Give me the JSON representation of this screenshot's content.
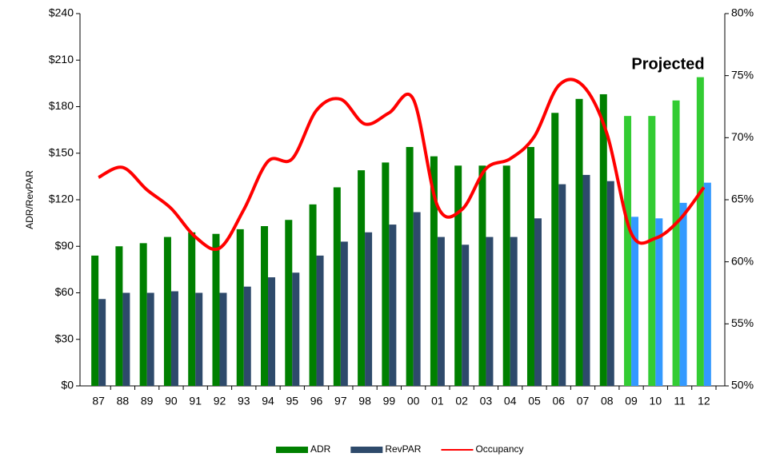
{
  "chart_data": {
    "type": "bar-line",
    "annotation": "Projected",
    "y_label": "ADR/RevPAR",
    "categories": [
      "87",
      "88",
      "89",
      "90",
      "91",
      "92",
      "93",
      "94",
      "95",
      "96",
      "97",
      "98",
      "99",
      "00",
      "01",
      "02",
      "03",
      "04",
      "05",
      "06",
      "07",
      "08",
      "09",
      "10",
      "11",
      "12"
    ],
    "series": [
      {
        "name": "ADR",
        "type": "bar",
        "color": "#008000",
        "colors": [
          "#008000",
          "#008000",
          "#008000",
          "#008000",
          "#008000",
          "#008000",
          "#008000",
          "#008000",
          "#008000",
          "#008000",
          "#008000",
          "#008000",
          "#008000",
          "#008000",
          "#008000",
          "#008000",
          "#008000",
          "#008000",
          "#008000",
          "#008000",
          "#008000",
          "#008000",
          "#33cc33",
          "#33cc33",
          "#33cc33",
          "#33cc33"
        ],
        "values": [
          84,
          90,
          92,
          96,
          99,
          98,
          101,
          103,
          107,
          117,
          128,
          139,
          144,
          154,
          148,
          142,
          142,
          142,
          154,
          176,
          185,
          188,
          174,
          174,
          184,
          199
        ]
      },
      {
        "name": "RevPAR",
        "type": "bar",
        "color": "#2e4a6b",
        "colors": [
          "#2e4a6b",
          "#2e4a6b",
          "#2e4a6b",
          "#2e4a6b",
          "#2e4a6b",
          "#2e4a6b",
          "#2e4a6b",
          "#2e4a6b",
          "#2e4a6b",
          "#2e4a6b",
          "#2e4a6b",
          "#2e4a6b",
          "#2e4a6b",
          "#2e4a6b",
          "#2e4a6b",
          "#2e4a6b",
          "#2e4a6b",
          "#2e4a6b",
          "#2e4a6b",
          "#2e4a6b",
          "#2e4a6b",
          "#2e4a6b",
          "#3399ff",
          "#3399ff",
          "#3399ff",
          "#3399ff"
        ],
        "values": [
          56,
          60,
          60,
          61,
          60,
          60,
          64,
          70,
          73,
          84,
          93,
          99,
          104,
          112,
          96,
          91,
          96,
          96,
          108,
          130,
          136,
          132,
          109,
          108,
          118,
          131
        ]
      },
      {
        "name": "Occupancy",
        "type": "line",
        "axis": "y2",
        "color": "#ff0000",
        "values": [
          66.8,
          67.6,
          65.8,
          64.3,
          62.0,
          61.1,
          64.2,
          68.1,
          68.3,
          72.2,
          73.1,
          71.1,
          72.0,
          73.1,
          64.5,
          64.2,
          67.5,
          68.3,
          70.1,
          74.2,
          74.2,
          70.3,
          62.3,
          61.9,
          63.4,
          66.0
        ]
      }
    ],
    "ylim": [
      0,
      240
    ],
    "yticks": [
      {
        "value": 0,
        "label": "$0"
      },
      {
        "value": 30,
        "label": "$30"
      },
      {
        "value": 60,
        "label": "$60"
      },
      {
        "value": 90,
        "label": "$90"
      },
      {
        "value": 120,
        "label": "$120"
      },
      {
        "value": 150,
        "label": "$150"
      },
      {
        "value": 180,
        "label": "$180"
      },
      {
        "value": 210,
        "label": "$210"
      },
      {
        "value": 240,
        "label": "$240"
      }
    ],
    "y2lim": [
      50,
      80
    ],
    "y2ticks": [
      {
        "value": 50,
        "label": "50%"
      },
      {
        "value": 55,
        "label": "55%"
      },
      {
        "value": 60,
        "label": "60%"
      },
      {
        "value": 65,
        "label": "65%"
      },
      {
        "value": 70,
        "label": "70%"
      },
      {
        "value": 75,
        "label": "75%"
      },
      {
        "value": 80,
        "label": "80%"
      }
    ],
    "grid": false
  }
}
